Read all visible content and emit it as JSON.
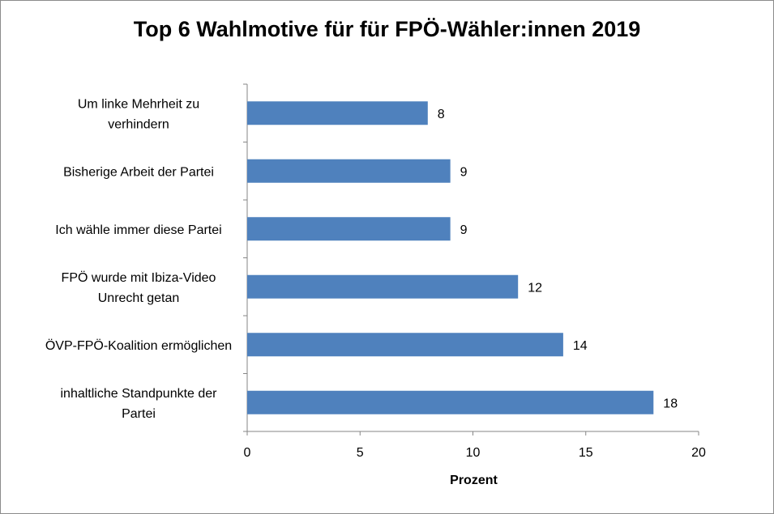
{
  "chart_data": {
    "type": "bar",
    "orientation": "horizontal",
    "title": "Top 6 Wahlmotive für für FPÖ-Wähler:innen 2019",
    "xlabel": "Prozent",
    "ylabel": "",
    "categories": [
      [
        "Um linke Mehrheit zu",
        "verhindern"
      ],
      [
        "Bisherige Arbeit der Partei"
      ],
      [
        "Ich wähle immer diese Partei"
      ],
      [
        "FPÖ wurde mit Ibiza-Video",
        "Unrecht getan"
      ],
      [
        "ÖVP-FPÖ-Koalition ermöglichen"
      ],
      [
        "inhaltliche Standpunkte der",
        "Partei"
      ]
    ],
    "values": [
      8,
      9,
      9,
      12,
      14,
      18
    ],
    "xlim": [
      0,
      20
    ],
    "xticks": [
      0,
      5,
      10,
      15,
      20
    ],
    "bar_color": "#4F81BD",
    "grid": false,
    "data_labels": true
  }
}
